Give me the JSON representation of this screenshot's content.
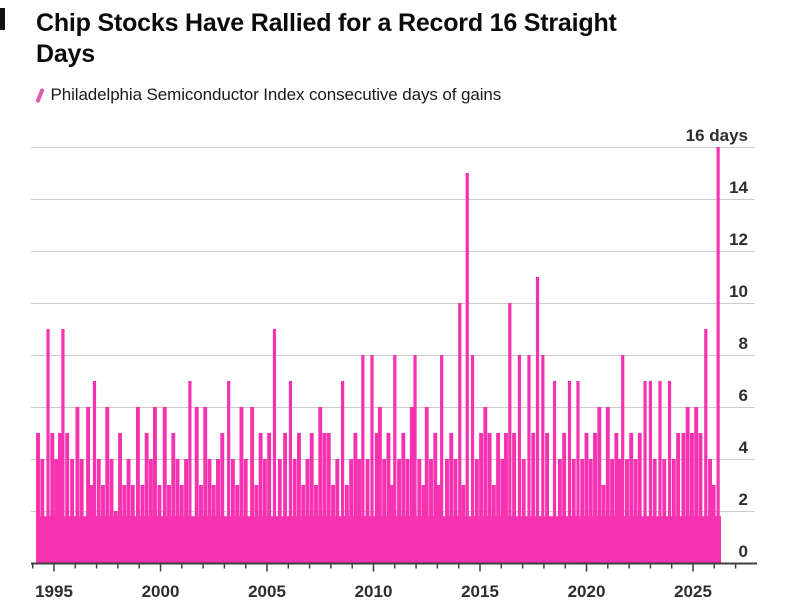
{
  "header": {
    "title_line1": "Chip Stocks Have Rallied for a Record 16 Straight",
    "title_line2": "Days"
  },
  "legend": {
    "marker": "slash-icon",
    "label": "Philadelphia Semiconductor Index consecutive days of gains"
  },
  "colors": {
    "bar": "#F632B0",
    "legend_slash": "#E05CAC",
    "grid": "#CBCBCB",
    "axis": "#3F3F3F",
    "tick_text": "#2E2E2E",
    "title_text": "#0B0B0B",
    "background": "#FFFFFF"
  },
  "chart_data": {
    "type": "bar",
    "title": "Chip Stocks Have Rallied for a Record 16 Straight Days",
    "series_name": "Philadelphia Semiconductor Index consecutive days of gains",
    "unit": "days",
    "ylim": [
      0,
      16
    ],
    "x_domain": [
      1994.2,
      2026.6
    ],
    "grid": "horizontal",
    "legend_position": "top-left",
    "record_value": 16,
    "record_label": "16 days",
    "ytick_values": [
      0,
      2,
      4,
      6,
      8,
      10,
      12,
      14,
      16
    ],
    "ytick_labels": [
      "0",
      "2",
      "4",
      "6",
      "8",
      "10",
      "12",
      "14",
      "16 days"
    ],
    "xtick_years": [
      1995,
      2000,
      2005,
      2010,
      2015,
      2020,
      2025
    ],
    "xtick_labels": [
      "1995",
      "2000",
      "2005",
      "2010",
      "2015",
      "2020",
      "2025"
    ],
    "minor_tick_years": [
      1994,
      2027
    ],
    "base_band_days": 1.8,
    "bars": [
      [
        1994.25,
        5
      ],
      [
        1994.45,
        4
      ],
      [
        1994.72,
        9
      ],
      [
        1994.92,
        5
      ],
      [
        1995.1,
        4
      ],
      [
        1995.28,
        5
      ],
      [
        1995.42,
        9
      ],
      [
        1995.62,
        5
      ],
      [
        1995.85,
        4
      ],
      [
        1996.1,
        6
      ],
      [
        1996.3,
        4
      ],
      [
        1996.6,
        6
      ],
      [
        1996.75,
        3
      ],
      [
        1996.9,
        7
      ],
      [
        1997.1,
        4
      ],
      [
        1997.3,
        3
      ],
      [
        1997.5,
        6
      ],
      [
        1997.7,
        4
      ],
      [
        1997.9,
        2
      ],
      [
        1998.1,
        5
      ],
      [
        1998.3,
        3
      ],
      [
        1998.5,
        4
      ],
      [
        1998.7,
        3
      ],
      [
        1998.94,
        6
      ],
      [
        1999.15,
        3
      ],
      [
        1999.35,
        5
      ],
      [
        1999.55,
        4
      ],
      [
        1999.74,
        6
      ],
      [
        1999.95,
        3
      ],
      [
        2000.2,
        6
      ],
      [
        2000.4,
        3
      ],
      [
        2000.6,
        5
      ],
      [
        2000.8,
        4
      ],
      [
        2001.0,
        3
      ],
      [
        2001.2,
        4
      ],
      [
        2001.38,
        7
      ],
      [
        2001.7,
        6
      ],
      [
        2001.9,
        3
      ],
      [
        2002.1,
        6
      ],
      [
        2002.3,
        4
      ],
      [
        2002.5,
        3
      ],
      [
        2002.7,
        4
      ],
      [
        2002.9,
        5
      ],
      [
        2003.2,
        7
      ],
      [
        2003.4,
        4
      ],
      [
        2003.6,
        3
      ],
      [
        2003.8,
        6
      ],
      [
        2004.0,
        4
      ],
      [
        2004.3,
        6
      ],
      [
        2004.5,
        3
      ],
      [
        2004.7,
        5
      ],
      [
        2004.9,
        4
      ],
      [
        2005.1,
        5
      ],
      [
        2005.35,
        9
      ],
      [
        2005.6,
        4
      ],
      [
        2005.85,
        5
      ],
      [
        2006.1,
        7
      ],
      [
        2006.3,
        4
      ],
      [
        2006.5,
        5
      ],
      [
        2006.7,
        3
      ],
      [
        2006.9,
        4
      ],
      [
        2007.1,
        5
      ],
      [
        2007.3,
        3
      ],
      [
        2007.5,
        6
      ],
      [
        2007.7,
        5
      ],
      [
        2007.9,
        5
      ],
      [
        2008.1,
        3
      ],
      [
        2008.3,
        4
      ],
      [
        2008.55,
        7
      ],
      [
        2008.75,
        3
      ],
      [
        2008.95,
        4
      ],
      [
        2009.15,
        5
      ],
      [
        2009.33,
        4
      ],
      [
        2009.5,
        8
      ],
      [
        2009.72,
        4
      ],
      [
        2009.93,
        8
      ],
      [
        2010.15,
        5
      ],
      [
        2010.3,
        6
      ],
      [
        2010.5,
        4
      ],
      [
        2010.7,
        5
      ],
      [
        2010.85,
        3
      ],
      [
        2011.0,
        8
      ],
      [
        2011.2,
        4
      ],
      [
        2011.4,
        5
      ],
      [
        2011.6,
        4
      ],
      [
        2011.8,
        6
      ],
      [
        2011.95,
        8
      ],
      [
        2012.15,
        4
      ],
      [
        2012.35,
        3
      ],
      [
        2012.5,
        6
      ],
      [
        2012.7,
        4
      ],
      [
        2012.9,
        5
      ],
      [
        2013.05,
        3
      ],
      [
        2013.2,
        8
      ],
      [
        2013.45,
        4
      ],
      [
        2013.65,
        5
      ],
      [
        2013.85,
        4
      ],
      [
        2014.05,
        10
      ],
      [
        2014.22,
        3
      ],
      [
        2014.4,
        15
      ],
      [
        2014.65,
        8
      ],
      [
        2014.85,
        4
      ],
      [
        2015.05,
        5
      ],
      [
        2015.25,
        6
      ],
      [
        2015.45,
        5
      ],
      [
        2015.65,
        3
      ],
      [
        2015.85,
        5
      ],
      [
        2016.05,
        4
      ],
      [
        2016.22,
        5
      ],
      [
        2016.4,
        10
      ],
      [
        2016.6,
        5
      ],
      [
        2016.85,
        8
      ],
      [
        2017.05,
        4
      ],
      [
        2017.3,
        8
      ],
      [
        2017.5,
        5
      ],
      [
        2017.7,
        11
      ],
      [
        2017.95,
        8
      ],
      [
        2018.15,
        5
      ],
      [
        2018.5,
        7
      ],
      [
        2018.75,
        4
      ],
      [
        2018.95,
        5
      ],
      [
        2019.2,
        7
      ],
      [
        2019.4,
        4
      ],
      [
        2019.6,
        7
      ],
      [
        2019.8,
        4
      ],
      [
        2020.0,
        5
      ],
      [
        2020.2,
        4
      ],
      [
        2020.4,
        5
      ],
      [
        2020.6,
        6
      ],
      [
        2020.8,
        3
      ],
      [
        2021.0,
        6
      ],
      [
        2021.2,
        4
      ],
      [
        2021.4,
        5
      ],
      [
        2021.55,
        4
      ],
      [
        2021.7,
        8
      ],
      [
        2021.9,
        4
      ],
      [
        2022.1,
        5
      ],
      [
        2022.3,
        4
      ],
      [
        2022.5,
        5
      ],
      [
        2022.75,
        7
      ],
      [
        2023.0,
        7
      ],
      [
        2023.2,
        4
      ],
      [
        2023.45,
        7
      ],
      [
        2023.65,
        4
      ],
      [
        2023.9,
        7
      ],
      [
        2024.1,
        4
      ],
      [
        2024.3,
        5
      ],
      [
        2024.55,
        5
      ],
      [
        2024.75,
        6
      ],
      [
        2024.95,
        5
      ],
      [
        2025.15,
        6
      ],
      [
        2025.35,
        5
      ],
      [
        2025.6,
        9
      ],
      [
        2025.8,
        4
      ],
      [
        2025.97,
        3
      ],
      [
        2026.18,
        16
      ]
    ]
  }
}
